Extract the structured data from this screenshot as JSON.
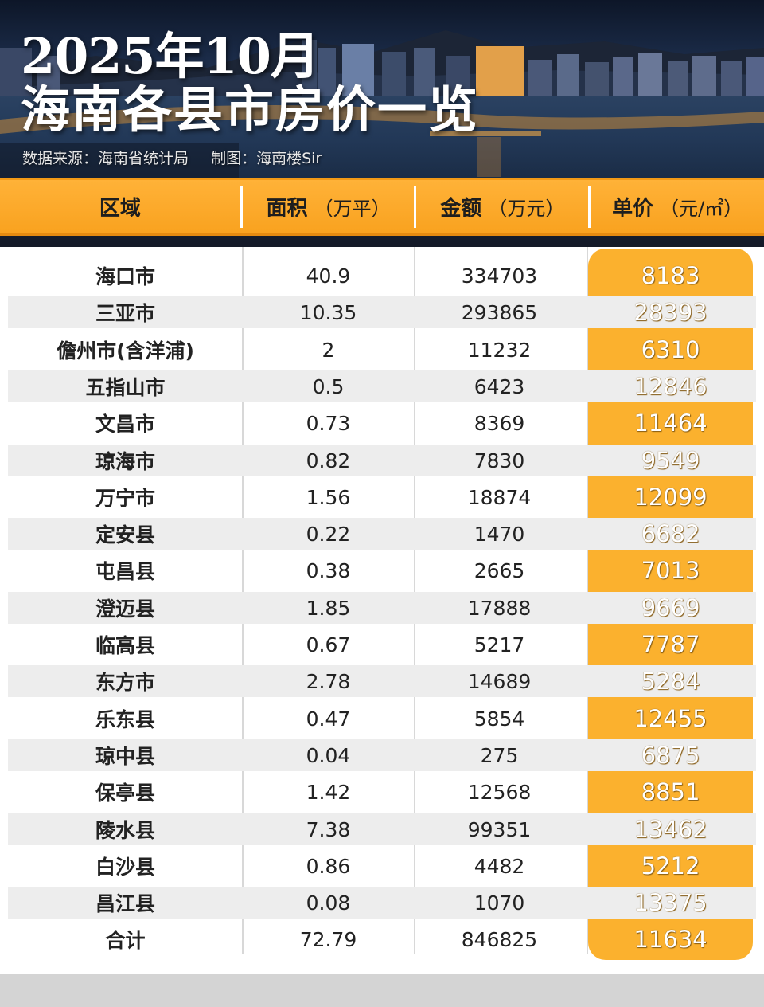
{
  "hero": {
    "title_line1": "2025年10月",
    "title_line2": "海南各县市房价一览",
    "source": "数据来源：海南省统计局",
    "author": "制图：海南楼Sir"
  },
  "header": {
    "region": "区域",
    "area": "面积",
    "area_unit": "（万平）",
    "amount": "金额",
    "amount_unit": "（万元）",
    "price": "单价",
    "price_unit": "（元/㎡）"
  },
  "colors": {
    "accent": "#fbb12e",
    "header_bar": "#f9a21f",
    "row_shade": "#ededed"
  },
  "rows": [
    {
      "region": "海口市",
      "area": "40.9",
      "amount": "334703",
      "price": "8183"
    },
    {
      "region": "三亚市",
      "area": "10.35",
      "amount": "293865",
      "price": "28393"
    },
    {
      "region": "儋州市(含洋浦)",
      "area": "2",
      "amount": "11232",
      "price": "6310"
    },
    {
      "region": "五指山市",
      "area": "0.5",
      "amount": "6423",
      "price": "12846"
    },
    {
      "region": "文昌市",
      "area": "0.73",
      "amount": "8369",
      "price": "11464"
    },
    {
      "region": "琼海市",
      "area": "0.82",
      "amount": "7830",
      "price": "9549"
    },
    {
      "region": "万宁市",
      "area": "1.56",
      "amount": "18874",
      "price": "12099"
    },
    {
      "region": "定安县",
      "area": "0.22",
      "amount": "1470",
      "price": "6682"
    },
    {
      "region": "屯昌县",
      "area": "0.38",
      "amount": "2665",
      "price": "7013"
    },
    {
      "region": "澄迈县",
      "area": "1.85",
      "amount": "17888",
      "price": "9669"
    },
    {
      "region": "临高县",
      "area": "0.67",
      "amount": "5217",
      "price": "7787"
    },
    {
      "region": "东方市",
      "area": "2.78",
      "amount": "14689",
      "price": "5284"
    },
    {
      "region": "乐东县",
      "area": "0.47",
      "amount": "5854",
      "price": "12455"
    },
    {
      "region": "琼中县",
      "area": "0.04",
      "amount": "275",
      "price": "6875"
    },
    {
      "region": "保亭县",
      "area": "1.42",
      "amount": "12568",
      "price": "8851"
    },
    {
      "region": "陵水县",
      "area": "7.38",
      "amount": "99351",
      "price": "13462"
    },
    {
      "region": "白沙县",
      "area": "0.86",
      "amount": "4482",
      "price": "5212"
    },
    {
      "region": "昌江县",
      "area": "0.08",
      "amount": "1070",
      "price": "13375"
    },
    {
      "region": "合计",
      "area": "72.79",
      "amount": "846825",
      "price": "11634"
    }
  ]
}
